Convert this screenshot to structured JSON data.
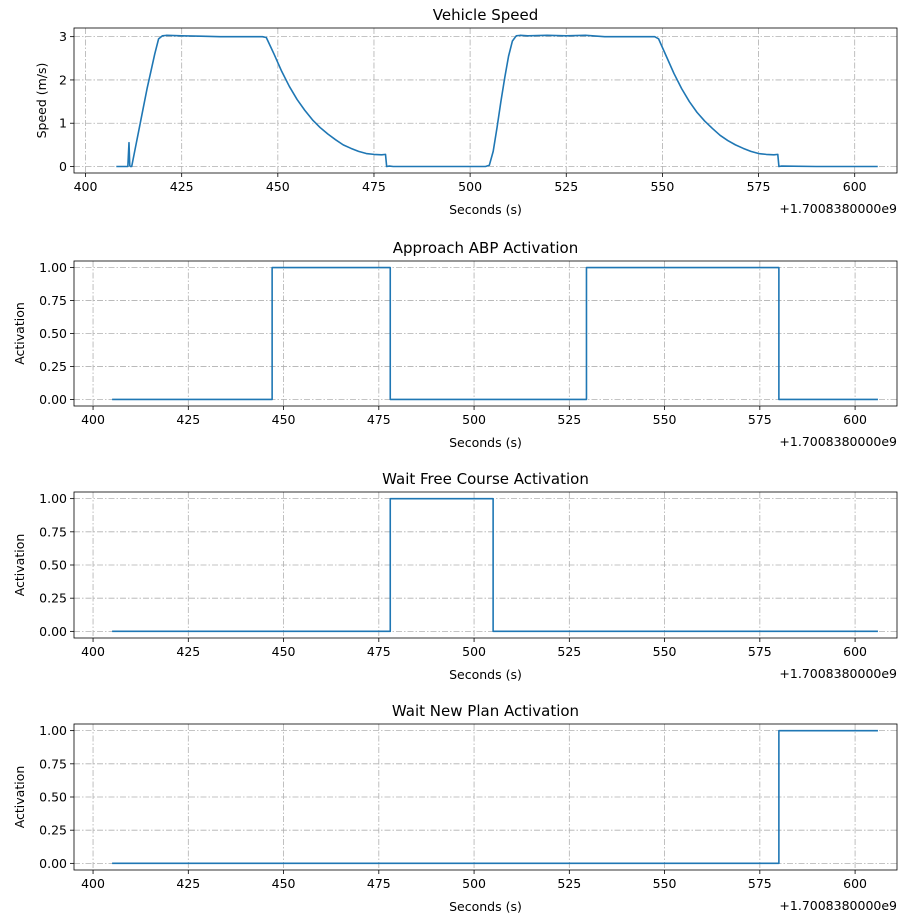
{
  "chart_data": [
    {
      "type": "line",
      "title": "Vehicle Speed",
      "xlabel": "Seconds (s)",
      "ylabel": "Speed (m/s)",
      "offset_label": "+1.7008380000e9",
      "xlim": [
        397,
        611
      ],
      "ylim": [
        -0.15,
        3.2
      ],
      "xticks": [
        400,
        425,
        450,
        475,
        500,
        525,
        550,
        575,
        600
      ],
      "yticks": [
        0,
        1,
        2,
        3
      ],
      "ytick_labels": [
        "0",
        "1",
        "2",
        "3"
      ],
      "grid": true,
      "series": [
        {
          "color": "#1f77b4",
          "x": [
            408,
            411,
            411.3,
            411.5,
            411.7,
            412,
            413,
            414,
            415,
            416,
            417,
            418,
            419,
            420,
            421,
            425,
            430,
            435,
            440,
            446,
            447,
            449,
            451,
            453,
            455,
            457,
            459,
            461,
            463,
            465,
            467,
            469,
            471,
            473,
            475,
            477,
            478,
            478.3,
            479,
            480,
            490,
            500,
            504,
            505,
            506,
            507,
            508,
            509,
            510,
            511,
            512,
            513,
            515,
            520,
            525,
            530,
            535,
            540,
            546,
            548,
            549,
            551,
            553,
            555,
            557,
            559,
            561,
            563,
            565,
            567,
            569,
            571,
            573,
            575,
            577,
            579,
            580,
            580.3,
            581,
            590,
            600,
            606
          ],
          "y": [
            0,
            0,
            0.55,
            0.02,
            0,
            0,
            0.45,
            0.9,
            1.35,
            1.8,
            2.2,
            2.6,
            2.95,
            3.02,
            3.03,
            3.02,
            3.01,
            3.0,
            3.0,
            3.0,
            2.98,
            2.6,
            2.2,
            1.85,
            1.55,
            1.3,
            1.08,
            0.9,
            0.75,
            0.62,
            0.5,
            0.42,
            0.35,
            0.3,
            0.28,
            0.27,
            0.28,
            0,
            0.01,
            0,
            0,
            0,
            0,
            0.03,
            0.35,
            0.9,
            1.5,
            2.05,
            2.55,
            2.9,
            3.02,
            3.03,
            3.02,
            3.03,
            3.02,
            3.03,
            3.0,
            3.0,
            3.0,
            3.0,
            2.95,
            2.55,
            2.15,
            1.8,
            1.5,
            1.25,
            1.05,
            0.88,
            0.72,
            0.6,
            0.5,
            0.42,
            0.35,
            0.3,
            0.28,
            0.27,
            0.28,
            0,
            0.01,
            0,
            0,
            0
          ]
        }
      ]
    },
    {
      "type": "line",
      "title": "Approach ABP Activation",
      "xlabel": "Seconds (s)",
      "ylabel": "Activation",
      "offset_label": "+1.7008380000e9",
      "xlim": [
        395,
        611
      ],
      "ylim": [
        -0.05,
        1.05
      ],
      "xticks": [
        400,
        425,
        450,
        475,
        500,
        525,
        550,
        575,
        600
      ],
      "yticks": [
        0,
        0.25,
        0.5,
        0.75,
        1.0
      ],
      "ytick_labels": [
        "0.00",
        "0.25",
        "0.50",
        "0.75",
        "1.00"
      ],
      "grid": true,
      "series": [
        {
          "color": "#1f77b4",
          "x": [
            405,
            447,
            447,
            478,
            478,
            529.5,
            529.5,
            580,
            580,
            606
          ],
          "y": [
            0,
            0,
            1,
            1,
            0,
            0,
            1,
            1,
            0,
            0
          ]
        }
      ]
    },
    {
      "type": "line",
      "title": "Wait Free Course Activation",
      "xlabel": "Seconds (s)",
      "ylabel": "Activation",
      "offset_label": "+1.7008380000e9",
      "xlim": [
        395,
        611
      ],
      "ylim": [
        -0.05,
        1.05
      ],
      "xticks": [
        400,
        425,
        450,
        475,
        500,
        525,
        550,
        575,
        600
      ],
      "yticks": [
        0,
        0.25,
        0.5,
        0.75,
        1.0
      ],
      "ytick_labels": [
        "0.00",
        "0.25",
        "0.50",
        "0.75",
        "1.00"
      ],
      "grid": true,
      "series": [
        {
          "color": "#1f77b4",
          "x": [
            405,
            478,
            478,
            505,
            505,
            606
          ],
          "y": [
            0,
            0,
            1,
            1,
            0,
            0
          ]
        }
      ]
    },
    {
      "type": "line",
      "title": "Wait New Plan Activation",
      "xlabel": "Seconds (s)",
      "ylabel": "Activation",
      "offset_label": "+1.7008380000e9",
      "xlim": [
        395,
        611
      ],
      "ylim": [
        -0.05,
        1.05
      ],
      "xticks": [
        400,
        425,
        450,
        475,
        500,
        525,
        550,
        575,
        600
      ],
      "yticks": [
        0,
        0.25,
        0.5,
        0.75,
        1.0
      ],
      "ytick_labels": [
        "0.00",
        "0.25",
        "0.50",
        "0.75",
        "1.00"
      ],
      "grid": true,
      "series": [
        {
          "color": "#1f77b4",
          "x": [
            405,
            580,
            580,
            606
          ],
          "y": [
            0,
            0,
            1,
            1
          ]
        }
      ]
    }
  ]
}
